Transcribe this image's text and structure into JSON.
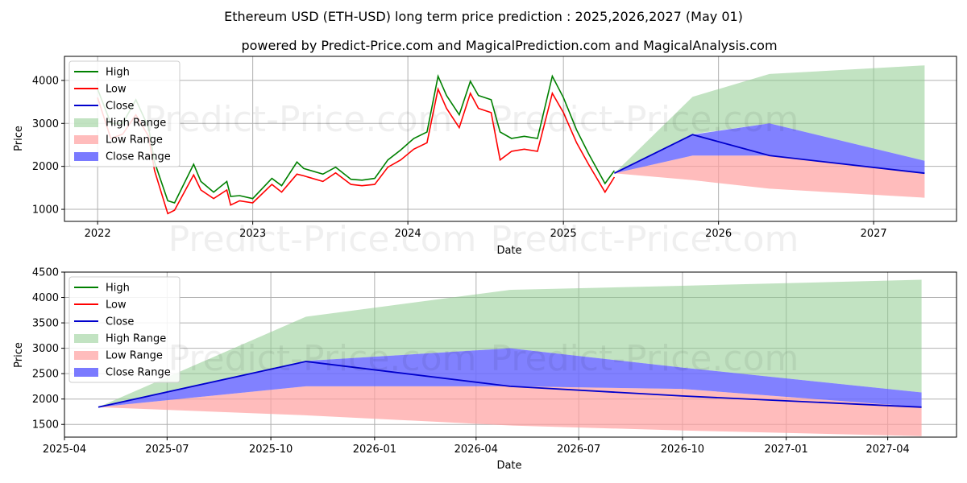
{
  "title": "Ethereum USD (ETH-USD) long term price prediction : 2025,2026,2027 (May 01)",
  "subtitle": "powered by Predict-Price.com and MagicalPrediction.com and MagicalAnalysis.com",
  "watermark": "Predict-Price.com",
  "colors": {
    "high": "#008000",
    "low": "#ff0000",
    "close": "#0000cd",
    "high_range": "#8fcc8f",
    "low_range": "#ffa0a0",
    "close_range": "#6b6bff"
  },
  "legend": [
    "High",
    "Low",
    "Close",
    "High Range",
    "Low Range",
    "Close Range"
  ],
  "chart_data": [
    {
      "type": "line",
      "xlabel": "Date",
      "ylabel": "Price",
      "x_ticks": [
        "2022",
        "2023",
        "2024",
        "2025",
        "2026",
        "2027"
      ],
      "y_ticks": [
        "1000",
        "2000",
        "3000",
        "4000"
      ],
      "xlim": [
        "2021-10-15",
        "2027-07-15"
      ],
      "ylim": [
        720,
        4560
      ],
      "grid": true,
      "legend_position": "top-left",
      "history": {
        "dates": [
          "2022-01-01",
          "2022-02-01",
          "2022-03-01",
          "2022-04-01",
          "2022-05-01",
          "2022-05-15",
          "2022-06-15",
          "2022-07-01",
          "2022-08-15",
          "2022-09-01",
          "2022-10-01",
          "2022-11-01",
          "2022-11-10",
          "2022-12-01",
          "2023-01-01",
          "2023-02-15",
          "2023-03-10",
          "2023-04-15",
          "2023-05-01",
          "2023-06-15",
          "2023-07-15",
          "2023-08-20",
          "2023-09-15",
          "2023-10-15",
          "2023-11-15",
          "2023-12-15",
          "2024-01-15",
          "2024-02-15",
          "2024-03-12",
          "2024-04-01",
          "2024-05-01",
          "2024-05-27",
          "2024-06-15",
          "2024-07-15",
          "2024-08-05",
          "2024-09-01",
          "2024-10-01",
          "2024-11-01",
          "2024-12-06",
          "2025-01-01",
          "2025-02-01",
          "2025-03-01",
          "2025-04-09",
          "2025-05-01"
        ],
        "close": [
          3700,
          2800,
          2900,
          3350,
          2800,
          2000,
          1100,
          1050,
          1900,
          1550,
          1300,
          1550,
          1250,
          1270,
          1200,
          1650,
          1450,
          1900,
          1850,
          1750,
          1900,
          1650,
          1600,
          1650,
          2050,
          2250,
          2500,
          2650,
          4000,
          3500,
          3050,
          3850,
          3500,
          3400,
          2450,
          2500,
          2550,
          2500,
          3900,
          3400,
          2700,
          2200,
          1500,
          1820
        ],
        "high": [
          3800,
          3000,
          3000,
          3550,
          2900,
          2100,
          1200,
          1150,
          2050,
          1650,
          1400,
          1650,
          1300,
          1320,
          1250,
          1720,
          1550,
          2100,
          1950,
          1820,
          1980,
          1700,
          1680,
          1720,
          2150,
          2380,
          2650,
          2800,
          4100,
          3650,
          3200,
          3980,
          3650,
          3550,
          2800,
          2650,
          2700,
          2650,
          4100,
          3600,
          2850,
          2300,
          1600,
          1900
        ],
        "low": [
          3600,
          2650,
          2750,
          3200,
          2700,
          1900,
          900,
          980,
          1800,
          1450,
          1250,
          1450,
          1100,
          1200,
          1150,
          1580,
          1400,
          1820,
          1780,
          1650,
          1850,
          1580,
          1550,
          1580,
          1980,
          2150,
          2400,
          2550,
          3800,
          3350,
          2900,
          3700,
          3350,
          3250,
          2150,
          2350,
          2400,
          2350,
          3700,
          3250,
          2550,
          2050,
          1400,
          1750
        ]
      },
      "forecast": {
        "dates": [
          "2025-05-01",
          "2025-11-01",
          "2026-05-01",
          "2027-05-01"
        ],
        "close": [
          1840,
          2740,
          2250,
          1840
        ],
        "high_range": [
          [
            1840,
            1840
          ],
          [
            2750,
            3620
          ],
          [
            3000,
            4150
          ],
          [
            2130,
            4350
          ]
        ],
        "low_range": [
          [
            1840,
            1840
          ],
          [
            1680,
            2250
          ],
          [
            1480,
            2250
          ],
          [
            1270,
            1840
          ]
        ],
        "close_range": [
          [
            1840,
            1840
          ],
          [
            2250,
            2740
          ],
          [
            2250,
            3000
          ],
          [
            1840,
            2130
          ]
        ]
      }
    },
    {
      "type": "area",
      "xlabel": "Date",
      "ylabel": "Price",
      "x_ticks": [
        "2025-04",
        "2025-07",
        "2025-10",
        "2026-01",
        "2026-04",
        "2026-07",
        "2026-10",
        "2027-01",
        "2027-04"
      ],
      "y_ticks": [
        "1500",
        "2000",
        "2500",
        "3000",
        "3500",
        "4000",
        "4500"
      ],
      "xlim": [
        "2025-04-01",
        "2027-06-01"
      ],
      "ylim": [
        1250,
        4500
      ],
      "grid": true,
      "legend_position": "top-left",
      "forecast": {
        "dates": [
          "2025-05-01",
          "2025-11-01",
          "2026-05-01",
          "2026-10-01",
          "2027-05-01"
        ],
        "close": [
          1840,
          2740,
          2250,
          2060,
          1840
        ],
        "high": [
          1840,
          3620,
          4150,
          4230,
          4350
        ],
        "high_low_edge": [
          1840,
          2750,
          3000,
          2620,
          2130
        ],
        "low_top": [
          1840,
          2250,
          2250,
          2200,
          1840
        ],
        "low_bottom": [
          1840,
          1680,
          1480,
          1380,
          1270
        ]
      }
    }
  ]
}
